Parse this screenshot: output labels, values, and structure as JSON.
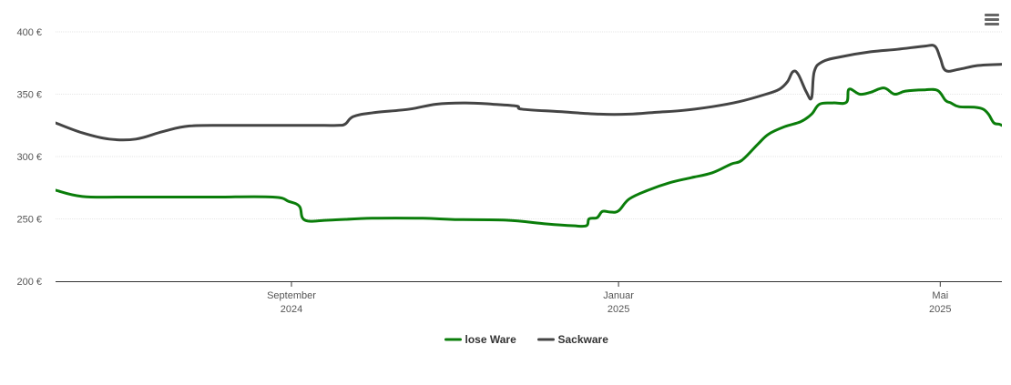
{
  "menu": {
    "icon": "hamburger-menu-icon"
  },
  "chart_data": {
    "type": "line",
    "title": "",
    "xlabel": "",
    "ylabel": "",
    "ylim": [
      200,
      400
    ],
    "y_ticks": [
      200,
      250,
      300,
      350,
      400
    ],
    "y_tick_labels": [
      "200 €",
      "250 €",
      "300 €",
      "350 €",
      "400 €"
    ],
    "xlim": [
      "2024-06-05",
      "2025-05-24"
    ],
    "x_ticks": [
      {
        "date": "2024-09-01",
        "line1": "September",
        "line2": "2024"
      },
      {
        "date": "2025-01-01",
        "line1": "Januar",
        "line2": "2025"
      },
      {
        "date": "2025-05-01",
        "line1": "Mai",
        "line2": "2025"
      }
    ],
    "grid": "horizontal",
    "legend_position": "bottom-center",
    "series": [
      {
        "name": "lose Ware",
        "color": "#0a7d0a",
        "points": [
          [
            "2024-06-05",
            273
          ],
          [
            "2024-06-15",
            268
          ],
          [
            "2024-07-01",
            267.5
          ],
          [
            "2024-08-01",
            267.5
          ],
          [
            "2024-08-25",
            267.5
          ],
          [
            "2024-08-31",
            264
          ],
          [
            "2024-09-04",
            260
          ],
          [
            "2024-09-06",
            249
          ],
          [
            "2024-09-15",
            249
          ],
          [
            "2024-10-01",
            250.5
          ],
          [
            "2024-10-20",
            250.5
          ],
          [
            "2024-11-01",
            249.5
          ],
          [
            "2024-11-20",
            249
          ],
          [
            "2024-12-05",
            246
          ],
          [
            "2024-12-15",
            244.5
          ],
          [
            "2024-12-20",
            244.5
          ],
          [
            "2024-12-21",
            250
          ],
          [
            "2024-12-24",
            251
          ],
          [
            "2024-12-26",
            256
          ],
          [
            "2024-12-29",
            255.5
          ],
          [
            "2025-01-01",
            256.5
          ],
          [
            "2025-01-05",
            266
          ],
          [
            "2025-01-12",
            273
          ],
          [
            "2025-01-20",
            279
          ],
          [
            "2025-01-28",
            283
          ],
          [
            "2025-02-05",
            287
          ],
          [
            "2025-02-12",
            294
          ],
          [
            "2025-02-16",
            297
          ],
          [
            "2025-02-22",
            310
          ],
          [
            "2025-02-26",
            318
          ],
          [
            "2025-03-04",
            324
          ],
          [
            "2025-03-10",
            328
          ],
          [
            "2025-03-14",
            334
          ],
          [
            "2025-03-17",
            342
          ],
          [
            "2025-03-22",
            343
          ],
          [
            "2025-03-27",
            343.5
          ],
          [
            "2025-03-28",
            354
          ],
          [
            "2025-04-01",
            350
          ],
          [
            "2025-04-05",
            351.5
          ],
          [
            "2025-04-10",
            355
          ],
          [
            "2025-04-14",
            350
          ],
          [
            "2025-04-18",
            352.5
          ],
          [
            "2025-04-25",
            353.5
          ],
          [
            "2025-04-30",
            353
          ],
          [
            "2025-05-03",
            345
          ],
          [
            "2025-05-05",
            343
          ],
          [
            "2025-05-08",
            340
          ],
          [
            "2025-05-14",
            339.5
          ],
          [
            "2025-05-17",
            338
          ],
          [
            "2025-05-19",
            334
          ],
          [
            "2025-05-21",
            327
          ],
          [
            "2025-05-23",
            326
          ],
          [
            "2025-05-24",
            325
          ]
        ]
      },
      {
        "name": "Sackware",
        "color": "#444444",
        "points": [
          [
            "2024-06-05",
            327
          ],
          [
            "2024-06-15",
            319
          ],
          [
            "2024-06-25",
            314
          ],
          [
            "2024-07-05",
            314
          ],
          [
            "2024-07-15",
            320
          ],
          [
            "2024-07-25",
            324.5
          ],
          [
            "2024-08-10",
            325
          ],
          [
            "2024-08-31",
            325
          ],
          [
            "2024-09-10",
            325
          ],
          [
            "2024-09-18",
            325
          ],
          [
            "2024-09-21",
            326
          ],
          [
            "2024-09-24",
            332
          ],
          [
            "2024-10-01",
            335
          ],
          [
            "2024-10-15",
            338
          ],
          [
            "2024-10-25",
            342
          ],
          [
            "2024-11-05",
            343
          ],
          [
            "2024-11-15",
            342
          ],
          [
            "2024-11-24",
            340.5
          ],
          [
            "2024-11-26",
            338
          ],
          [
            "2024-12-10",
            336
          ],
          [
            "2024-12-25",
            334
          ],
          [
            "2025-01-05",
            334
          ],
          [
            "2025-01-15",
            335.5
          ],
          [
            "2025-01-25",
            337
          ],
          [
            "2025-02-05",
            340
          ],
          [
            "2025-02-15",
            344
          ],
          [
            "2025-02-25",
            350
          ],
          [
            "2025-03-02",
            354
          ],
          [
            "2025-03-05",
            360
          ],
          [
            "2025-03-07",
            368
          ],
          [
            "2025-03-09",
            366
          ],
          [
            "2025-03-12",
            352
          ],
          [
            "2025-03-14",
            347
          ],
          [
            "2025-03-15",
            368
          ],
          [
            "2025-03-18",
            376
          ],
          [
            "2025-03-25",
            380
          ],
          [
            "2025-04-05",
            384
          ],
          [
            "2025-04-15",
            386
          ],
          [
            "2025-04-25",
            388.5
          ],
          [
            "2025-04-29",
            388.5
          ],
          [
            "2025-05-01",
            379
          ],
          [
            "2025-05-03",
            369
          ],
          [
            "2025-05-08",
            370
          ],
          [
            "2025-05-15",
            373
          ],
          [
            "2025-05-24",
            374
          ]
        ]
      }
    ]
  }
}
